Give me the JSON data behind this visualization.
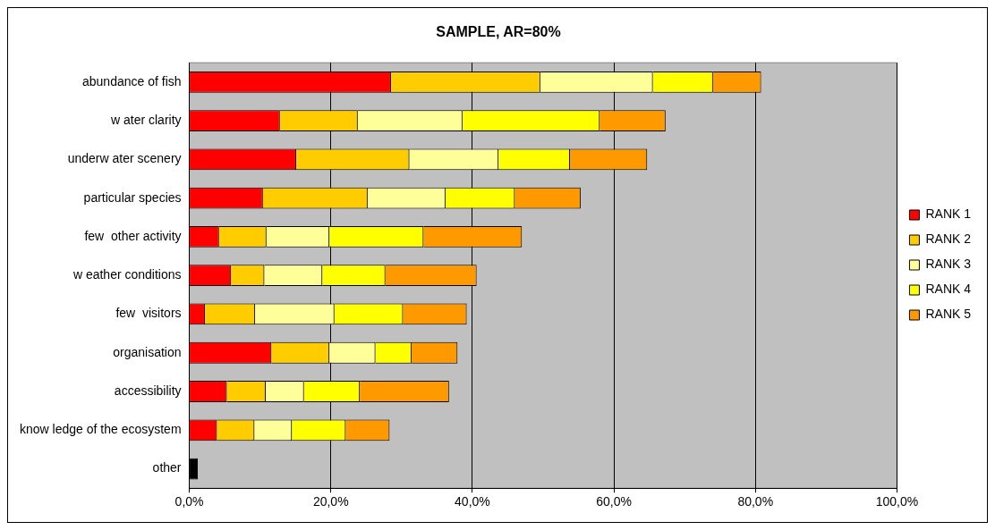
{
  "chart_data": {
    "type": "bar",
    "orientation": "horizontal",
    "stacked": true,
    "title": "SAMPLE, AR=80%",
    "categories": [
      "abundance of fish",
      "w ater clarity",
      "underw ater scenery",
      "particular species",
      "few  other activity",
      "w eather conditions",
      "few  visitors",
      "organisation",
      "accessibility",
      "know ledge of the ecosystem",
      "other"
    ],
    "series": [
      {
        "name": "RANK 1",
        "color": "#ff0000",
        "values": [
          28.5,
          12.8,
          15.1,
          10.4,
          4.2,
          5.9,
          2.2,
          11.6,
          5.3,
          3.9,
          null
        ]
      },
      {
        "name": "RANK 2",
        "color": "#ffcc00",
        "values": [
          21.1,
          11.0,
          16.0,
          14.8,
          6.7,
          4.7,
          7.1,
          8.2,
          5.5,
          5.3,
          null
        ]
      },
      {
        "name": "RANK 3",
        "color": "#ffff99",
        "values": [
          15.9,
          14.8,
          12.6,
          11.0,
          8.9,
          8.2,
          11.2,
          6.5,
          5.4,
          5.3,
          null
        ]
      },
      {
        "name": "RANK 4",
        "color": "#ffff00",
        "values": [
          8.5,
          19.4,
          10.1,
          9.8,
          13.3,
          8.9,
          9.7,
          5.1,
          7.9,
          7.6,
          null
        ]
      },
      {
        "name": "RANK 5",
        "color": "#ff9900",
        "values": [
          6.8,
          9.3,
          10.9,
          9.3,
          13.9,
          12.9,
          9.0,
          6.5,
          12.6,
          6.2,
          null
        ]
      },
      {
        "color": "#000000",
        "values": [
          null,
          null,
          null,
          null,
          null,
          null,
          null,
          null,
          null,
          null,
          1.2
        ]
      }
    ],
    "xlim": [
      0,
      100
    ],
    "xticks": [
      {
        "value": 0,
        "label": "0,0%"
      },
      {
        "value": 20,
        "label": "20,0%"
      },
      {
        "value": 40,
        "label": "40,0%"
      },
      {
        "value": 60,
        "label": "60,0%"
      },
      {
        "value": 80,
        "label": "80,0%"
      },
      {
        "value": 100,
        "label": "100,0%"
      }
    ],
    "grid": "x",
    "legend": "right"
  }
}
